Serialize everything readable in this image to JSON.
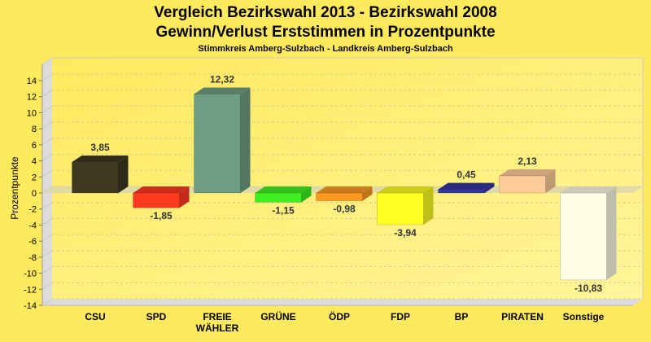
{
  "chart_data": {
    "type": "bar",
    "title": "Vergleich Bezirkswahl 2013 - Bezirkswahl 2008",
    "subtitle": "Gewinn/Verlust Erststimmen in Prozentpunkte",
    "subtitle2": "Stimmkreis Amberg-Sulzbach - Landkreis Amberg-Sulzbach",
    "xlabel": "",
    "ylabel": "Prozentpunkte",
    "ylim": [
      -14,
      14
    ],
    "yticks": [
      14,
      12,
      10,
      8,
      6,
      4,
      2,
      0,
      -2,
      -4,
      -6,
      -8,
      -10,
      -12,
      -14
    ],
    "grid": true,
    "categories": [
      "CSU",
      "SPD",
      "FREIE\nWÄHLER",
      "GRÜNE",
      "ÖDP",
      "FDP",
      "BP",
      "PIRATEN",
      "Sonstige"
    ],
    "values": [
      3.85,
      -1.85,
      12.32,
      -1.15,
      -0.98,
      -3.94,
      0.45,
      2.13,
      -10.83
    ],
    "labels": [
      "3,85",
      "-1,85",
      "12,32",
      "-1,15",
      "-0,98",
      "-3,94",
      "0,45",
      "2,13",
      "-10,83"
    ],
    "colors": [
      "#3d3820",
      "#ff3a1f",
      "#6f9e83",
      "#3ef01f",
      "#ff9a20",
      "#ffff22",
      "#3535a0",
      "#ffcc99",
      "#fffde6"
    ]
  }
}
